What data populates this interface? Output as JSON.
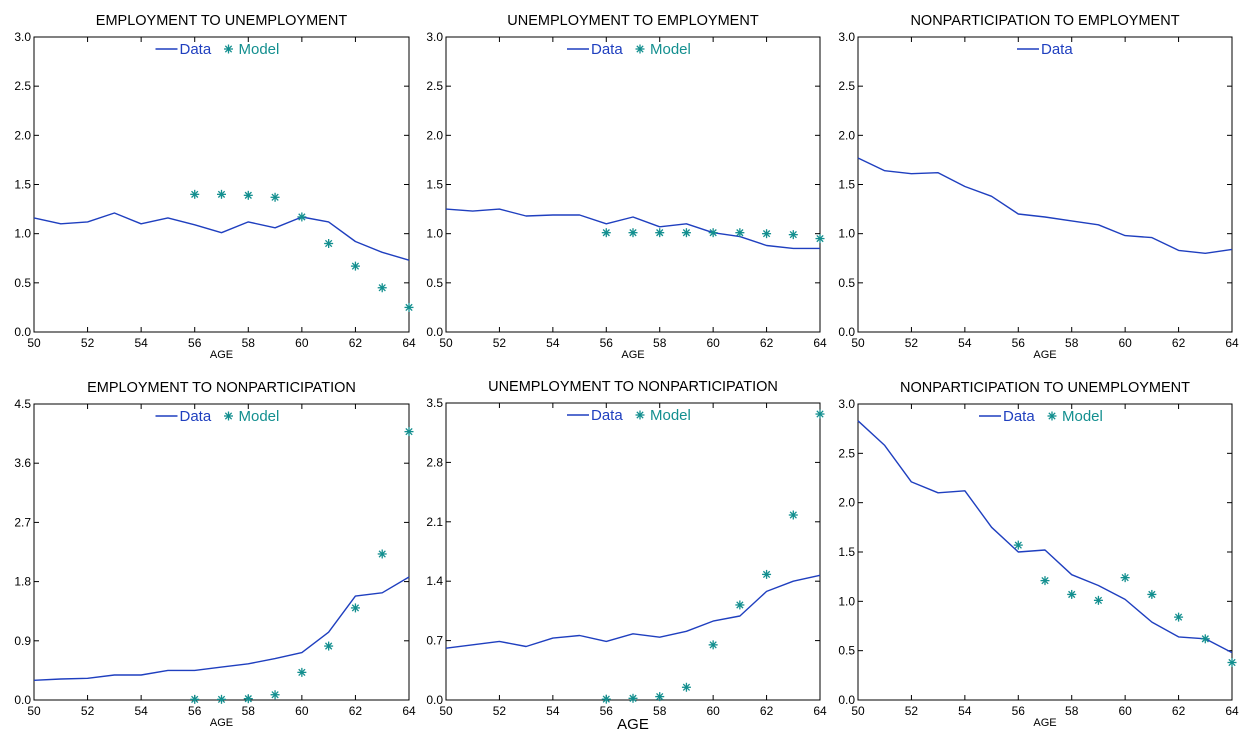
{
  "colors": {
    "data_line": "#1f3fbf",
    "model_marker": "#138f8f",
    "axis": "#000000"
  },
  "legend": {
    "data_label": "Data",
    "model_label": "Model"
  },
  "chart_data": [
    {
      "type": "line",
      "title": "EMPLOYMENT TO UNEMPLOYMENT",
      "xlabel": "AGE",
      "ylabel": "",
      "xlim": [
        50,
        64
      ],
      "ylim": [
        0,
        3.0
      ],
      "xticks": [
        "50",
        "52",
        "54",
        "56",
        "58",
        "60",
        "62",
        "64"
      ],
      "yticks": [
        "0.0",
        "0.5",
        "1.0",
        "1.5",
        "2.0",
        "2.5",
        "3.0"
      ],
      "legend_position": "top-center",
      "series": [
        {
          "name": "Data",
          "kind": "line",
          "x": [
            50,
            51,
            52,
            53,
            54,
            55,
            56,
            57,
            58,
            59,
            60,
            61,
            62,
            63,
            64
          ],
          "y": [
            1.16,
            1.1,
            1.12,
            1.21,
            1.1,
            1.16,
            1.09,
            1.01,
            1.12,
            1.06,
            1.17,
            1.12,
            0.92,
            0.81,
            0.73
          ]
        },
        {
          "name": "Model",
          "kind": "marker",
          "x": [
            56,
            57,
            58,
            59,
            60,
            61,
            62,
            63,
            64
          ],
          "y": [
            1.4,
            1.4,
            1.39,
            1.37,
            1.17,
            0.9,
            0.67,
            0.45,
            0.25
          ]
        }
      ]
    },
    {
      "type": "line",
      "title": "UNEMPLOYMENT TO EMPLOYMENT",
      "xlabel": "AGE",
      "ylabel": "",
      "xlim": [
        50,
        64
      ],
      "ylim": [
        0,
        3.0
      ],
      "xticks": [
        "50",
        "52",
        "54",
        "56",
        "58",
        "60",
        "62",
        "64"
      ],
      "yticks": [
        "0.0",
        "0.5",
        "1.0",
        "1.5",
        "2.0",
        "2.5",
        "3.0"
      ],
      "legend_position": "top-center",
      "series": [
        {
          "name": "Data",
          "kind": "line",
          "x": [
            50,
            51,
            52,
            53,
            54,
            55,
            56,
            57,
            58,
            59,
            60,
            61,
            62,
            63,
            64
          ],
          "y": [
            1.25,
            1.23,
            1.25,
            1.18,
            1.19,
            1.19,
            1.1,
            1.17,
            1.07,
            1.1,
            1.01,
            0.97,
            0.88,
            0.85,
            0.85
          ]
        },
        {
          "name": "Model",
          "kind": "marker",
          "x": [
            56,
            57,
            58,
            59,
            60,
            61,
            62,
            63,
            64
          ],
          "y": [
            1.01,
            1.01,
            1.01,
            1.01,
            1.01,
            1.01,
            1.0,
            0.99,
            0.95
          ]
        }
      ]
    },
    {
      "type": "line",
      "title": "NONPARTICIPATION TO EMPLOYMENT",
      "xlabel": "AGE",
      "ylabel": "",
      "xlim": [
        50,
        64
      ],
      "ylim": [
        0,
        3.0
      ],
      "xticks": [
        "50",
        "52",
        "54",
        "56",
        "58",
        "60",
        "62",
        "64"
      ],
      "yticks": [
        "0.0",
        "0.5",
        "1.0",
        "1.5",
        "2.0",
        "2.5",
        "3.0"
      ],
      "legend_position": "top-center",
      "series": [
        {
          "name": "Data",
          "kind": "line",
          "x": [
            50,
            51,
            52,
            53,
            54,
            55,
            56,
            57,
            58,
            59,
            60,
            61,
            62,
            63,
            64
          ],
          "y": [
            1.77,
            1.64,
            1.61,
            1.62,
            1.48,
            1.38,
            1.2,
            1.17,
            1.13,
            1.09,
            0.98,
            0.96,
            0.83,
            0.8,
            0.84
          ]
        }
      ]
    },
    {
      "type": "line",
      "title": "EMPLOYMENT TO NONPARTICIPATION",
      "xlabel": "AGE",
      "ylabel": "",
      "xlim": [
        50,
        64
      ],
      "ylim": [
        0,
        4.5
      ],
      "xticks": [
        "50",
        "52",
        "54",
        "56",
        "58",
        "60",
        "62",
        "64"
      ],
      "yticks": [
        "0.0",
        "0.9",
        "1.8",
        "2.7",
        "3.6",
        "4.5"
      ],
      "legend_position": "top-center",
      "series": [
        {
          "name": "Data",
          "kind": "line",
          "x": [
            50,
            51,
            52,
            53,
            54,
            55,
            56,
            57,
            58,
            59,
            60,
            61,
            62,
            63,
            64
          ],
          "y": [
            0.3,
            0.32,
            0.33,
            0.38,
            0.38,
            0.45,
            0.45,
            0.5,
            0.55,
            0.63,
            0.72,
            1.03,
            1.58,
            1.63,
            1.87
          ]
        },
        {
          "name": "Model",
          "kind": "marker",
          "x": [
            56,
            57,
            58,
            59,
            60,
            61,
            62,
            63,
            64
          ],
          "y": [
            0.01,
            0.01,
            0.02,
            0.08,
            0.42,
            0.82,
            1.4,
            2.22,
            4.08
          ]
        }
      ]
    },
    {
      "type": "line",
      "title": "UNEMPLOYMENT TO NONPARTICIPATION",
      "xlabel": "AGE",
      "ylabel": "",
      "xlim": [
        50,
        64
      ],
      "ylim": [
        0,
        3.5
      ],
      "xticks": [
        "50",
        "52",
        "54",
        "56",
        "58",
        "60",
        "62",
        "64"
      ],
      "yticks": [
        "0.0",
        "0.7",
        "1.4",
        "2.1",
        "2.8",
        "3.5"
      ],
      "legend_position": "top-center",
      "series": [
        {
          "name": "Data",
          "kind": "line",
          "x": [
            50,
            51,
            52,
            53,
            54,
            55,
            56,
            57,
            58,
            59,
            60,
            61,
            62,
            63,
            64
          ],
          "y": [
            0.61,
            0.65,
            0.69,
            0.63,
            0.73,
            0.76,
            0.69,
            0.78,
            0.74,
            0.81,
            0.93,
            0.99,
            1.28,
            1.4,
            1.47
          ]
        },
        {
          "name": "Model",
          "kind": "marker",
          "x": [
            56,
            57,
            58,
            59,
            60,
            61,
            62,
            63,
            64
          ],
          "y": [
            0.01,
            0.02,
            0.04,
            0.15,
            0.65,
            1.12,
            1.48,
            2.18,
            3.37
          ]
        }
      ]
    },
    {
      "type": "line",
      "title": "NONPARTICIPATION TO UNEMPLOYMENT",
      "xlabel": "AGE",
      "ylabel": "",
      "xlim": [
        50,
        64
      ],
      "ylim": [
        0,
        3.0
      ],
      "xticks": [
        "50",
        "52",
        "54",
        "56",
        "58",
        "60",
        "62",
        "64"
      ],
      "yticks": [
        "0.0",
        "0.5",
        "1.0",
        "1.5",
        "2.0",
        "2.5",
        "3.0"
      ],
      "legend_position": "top-center",
      "series": [
        {
          "name": "Data",
          "kind": "line",
          "x": [
            50,
            51,
            52,
            53,
            54,
            55,
            56,
            57,
            58,
            59,
            60,
            61,
            62,
            63,
            64
          ],
          "y": [
            2.83,
            2.58,
            2.21,
            2.1,
            2.12,
            1.75,
            1.5,
            1.52,
            1.27,
            1.16,
            1.02,
            0.79,
            0.64,
            0.62,
            0.48
          ]
        },
        {
          "name": "Model",
          "kind": "marker",
          "x": [
            56,
            57,
            58,
            59,
            60,
            61,
            62,
            63,
            64
          ],
          "y": [
            1.57,
            1.21,
            1.07,
            1.01,
            1.24,
            1.07,
            0.84,
            0.62,
            0.38
          ]
        }
      ]
    }
  ]
}
